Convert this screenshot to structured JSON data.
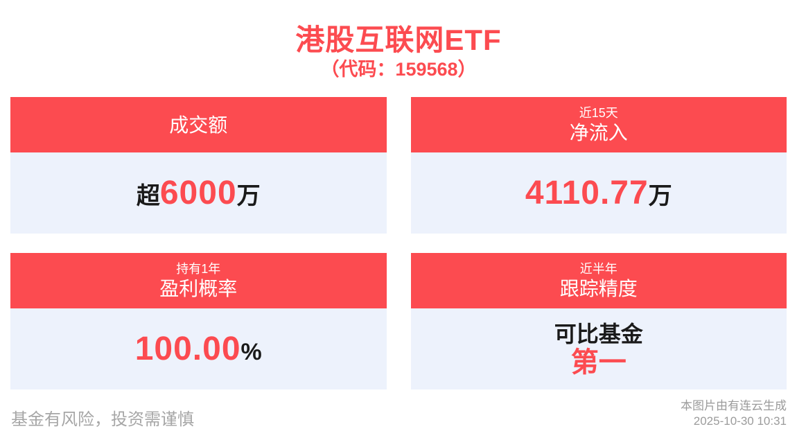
{
  "colors": {
    "accent": "#FC4B50",
    "body_bg": "#EDF2FC",
    "text_dark": "#1A1A1A",
    "muted": "#A6A6A6"
  },
  "header": {
    "title": "港股互联网ETF",
    "subtitle": "（代码：159568）"
  },
  "cards": [
    {
      "tag": "",
      "label": "成交额",
      "value_prefix": "超",
      "value": "6000",
      "value_suffix": "万"
    },
    {
      "tag": "近15天",
      "label": "净流入",
      "value_prefix": "",
      "value": "4110.77",
      "value_suffix": "万"
    },
    {
      "tag": "持有1年",
      "label": "盈利概率",
      "value_prefix": "",
      "value": "100.00",
      "value_suffix": "%"
    },
    {
      "tag": "近半年",
      "label": "跟踪精度",
      "value_line1": "可比基金",
      "value_line2": "第一"
    }
  ],
  "footer": {
    "disclaimer": "基金有风险，投资需谨慎",
    "generator": "本图片由有连云生成",
    "timestamp": "2025-10-30 10:31"
  }
}
